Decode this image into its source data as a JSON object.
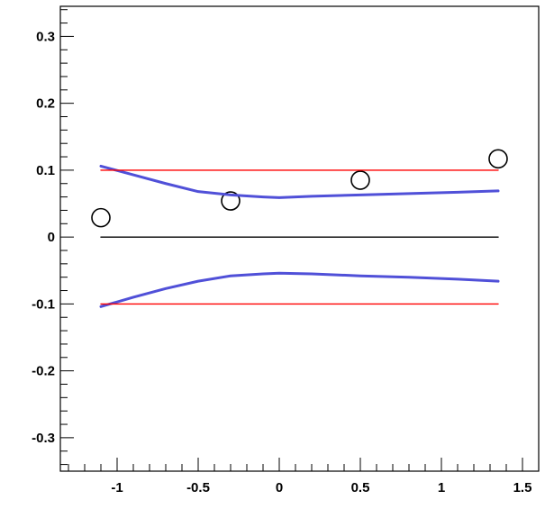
{
  "chart_data": {
    "type": "line",
    "title": "",
    "xlabel": "",
    "ylabel": "",
    "xlim": [
      -1.35,
      1.6
    ],
    "ylim": [
      -0.35,
      0.345
    ],
    "grid": false,
    "x_tick_labels": [
      {
        "value": -1.0,
        "label": "-1"
      },
      {
        "value": -0.5,
        "label": "-0.5"
      },
      {
        "value": 0.0,
        "label": "0"
      },
      {
        "value": 0.5,
        "label": "0.5"
      },
      {
        "value": 1.0,
        "label": "1"
      },
      {
        "value": 1.5,
        "label": "1.5"
      }
    ],
    "y_tick_labels": [
      {
        "value": 0.3,
        "label": "0.3"
      },
      {
        "value": 0.2,
        "label": "0.2"
      },
      {
        "value": 0.1,
        "label": "0.1"
      },
      {
        "value": 0.0,
        "label": "0"
      },
      {
        "value": -0.1,
        "label": "-0.1"
      },
      {
        "value": -0.2,
        "label": "-0.2"
      },
      {
        "value": -0.3,
        "label": "-0.3"
      }
    ],
    "series": [
      {
        "type": "scatter",
        "marker": "open-circle",
        "color": "#000000",
        "x": [
          -1.1,
          -0.3,
          0.5,
          1.35
        ],
        "y": [
          0.029,
          0.054,
          0.085,
          0.117
        ]
      },
      {
        "type": "line",
        "color": "#5050d8",
        "x": [
          -1.1,
          -0.9,
          -0.7,
          -0.5,
          -0.3,
          -0.1,
          0.0,
          0.2,
          0.5,
          0.8,
          1.1,
          1.35
        ],
        "y": [
          0.106,
          0.093,
          0.08,
          0.068,
          0.063,
          0.06,
          0.059,
          0.061,
          0.063,
          0.065,
          0.067,
          0.069
        ]
      },
      {
        "type": "line",
        "color": "#5050d8",
        "x": [
          -1.1,
          -0.9,
          -0.7,
          -0.5,
          -0.3,
          -0.1,
          0.0,
          0.2,
          0.5,
          0.8,
          1.1,
          1.35
        ],
        "y": [
          -0.104,
          -0.09,
          -0.077,
          -0.066,
          -0.058,
          -0.055,
          -0.054,
          -0.055,
          -0.058,
          -0.06,
          -0.063,
          -0.066
        ]
      },
      {
        "type": "line",
        "color": "#ff0000",
        "x": [
          -1.1,
          1.35
        ],
        "y": [
          0.1,
          0.1
        ]
      },
      {
        "type": "line",
        "color": "#ff0000",
        "x": [
          -1.1,
          1.35
        ],
        "y": [
          -0.1,
          -0.1
        ]
      },
      {
        "type": "line",
        "color": "#000000",
        "x": [
          -1.1,
          1.35
        ],
        "y": [
          0.0,
          0.0
        ]
      }
    ]
  }
}
